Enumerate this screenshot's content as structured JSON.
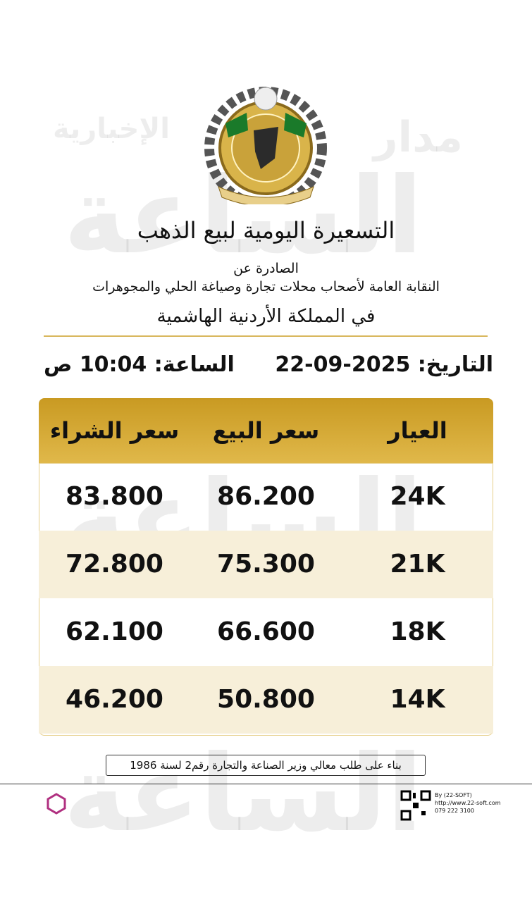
{
  "header": {
    "title": "التسعيرة اليومية لبيع الذهب",
    "issued_by": "الصادرة عن",
    "org": "النقابة العامة لأصحاب محلات تجارة وصياغة الحلي والمجوهرات",
    "country": "في المملكة الأردنية الهاشمية"
  },
  "date_line": {
    "date_label": "التاريخ:",
    "date": "22-09-2025",
    "time_label": "الساعة:",
    "time": "10:04 ص"
  },
  "table": {
    "headers": [
      "العيار",
      "سعر البيع",
      "سعر الشراء"
    ],
    "rows": [
      [
        "24K",
        "86.200",
        "83.800"
      ],
      [
        "21K",
        "75.300",
        "72.800"
      ],
      [
        "18K",
        "66.600",
        "62.100"
      ],
      [
        "14K",
        "50.800",
        "46.200"
      ]
    ]
  },
  "footer": {
    "note": "بناء على طلب معالي وزير الصناعة والتجارة رقم2 لسنة 1986",
    "credit": [
      "By (22-SOFT)",
      "http://www.22-soft.com",
      "079 222 3100"
    ]
  },
  "watermark": {
    "brand": "مدار",
    "sub": "الإخبارية",
    "main": "الساعة"
  }
}
